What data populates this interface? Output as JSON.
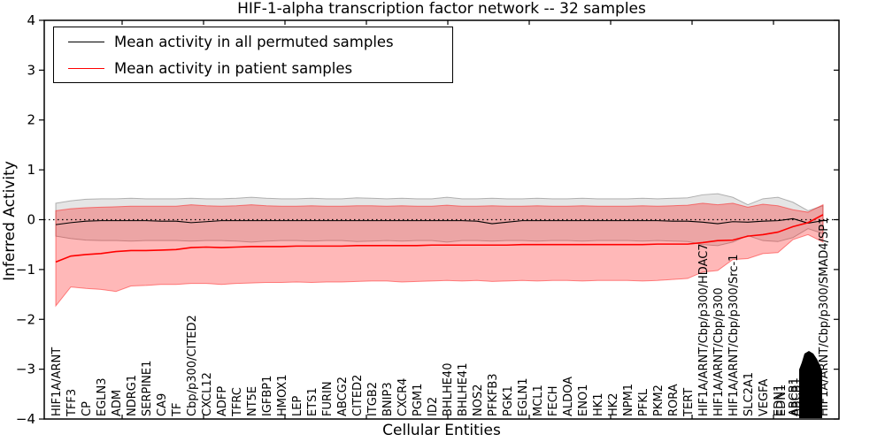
{
  "title": "HIF-1-alpha transcription factor network -- 32 samples",
  "xlabel": "Cellular Entities",
  "ylabel": "Inferred Activity",
  "legend": [
    {
      "label": "Mean activity in all permuted samples",
      "color": "#000000"
    },
    {
      "label": "Mean activity in patient samples",
      "color": "#ff0000"
    }
  ],
  "chart_data": {
    "type": "line",
    "title": "HIF-1-alpha transcription factor network -- 32 samples",
    "xlabel": "Cellular Entities",
    "ylabel": "Inferred Activity",
    "ylim": [
      -4,
      4
    ],
    "yticks": [
      4,
      3,
      2,
      1,
      0,
      -1,
      -2,
      -3,
      -4
    ],
    "grid": false,
    "legend_position": "upper left",
    "zero_line": {
      "y": 0,
      "style": "dotted",
      "color": "#000000"
    },
    "categories": [
      "HIF1A/ARNT",
      "TFF3",
      "CP",
      "EGLN3",
      "ADM",
      "NDRG1",
      "SERPINE1",
      "CA9",
      "TF",
      "Cbp/p300/CITED2",
      "CXCL12",
      "ADFP",
      "TFRC",
      "NT5E",
      "IGFBP1",
      "HMOX1",
      "LEP",
      "ETS1",
      "FURIN",
      "ABCG2",
      "CITED2",
      "ITGB2",
      "BNIP3",
      "CXCR4",
      "PGM1",
      "ID2",
      "BHLHE40",
      "BHLHE41",
      "NOS2",
      "PFKFB3",
      "PGK1",
      "EGLN1",
      "MCL1",
      "FECH",
      "ALDOA",
      "ENO1",
      "HK1",
      "HK2",
      "NPM1",
      "PFKL",
      "PKM2",
      "RORA",
      "TERT",
      "HIF1A/ARNT/Cbp/p300/HDAC7",
      "HIF1A/ARNT/Cbp/p300",
      "HIF1A/ARNT/Cbp/p300/Src-1",
      "SLC2A1",
      "VEGFA",
      "EDN1",
      "ABCB1",
      "",
      "HIF1A/ARNT/Cbp/p300/SMAD4/SP1"
    ],
    "overlapping_label_cluster": {
      "index": 50,
      "description": "many overlapping unreadable entity labels rendered as a solid black cluster"
    },
    "double_printed_indices": [
      48,
      49
    ],
    "series": [
      {
        "name": "Mean activity in all permuted samples",
        "color": "#000000",
        "values": [
          -0.1,
          -0.06,
          -0.03,
          -0.02,
          -0.02,
          -0.02,
          -0.02,
          -0.03,
          -0.03,
          -0.06,
          -0.04,
          -0.02,
          -0.02,
          -0.02,
          -0.02,
          -0.02,
          -0.02,
          -0.02,
          -0.02,
          -0.02,
          -0.02,
          -0.02,
          -0.02,
          -0.02,
          -0.02,
          -0.02,
          -0.02,
          -0.02,
          -0.03,
          -0.08,
          -0.05,
          -0.02,
          -0.02,
          -0.02,
          -0.02,
          -0.02,
          -0.02,
          -0.02,
          -0.02,
          -0.02,
          -0.02,
          -0.03,
          -0.03,
          -0.05,
          -0.08,
          -0.04,
          -0.05,
          -0.03,
          -0.02,
          0.02,
          -0.07,
          -0.02
        ]
      },
      {
        "name": "Mean activity in patient samples",
        "color": "#ff0000",
        "values": [
          -0.85,
          -0.73,
          -0.7,
          -0.68,
          -0.64,
          -0.62,
          -0.62,
          -0.61,
          -0.6,
          -0.56,
          -0.55,
          -0.56,
          -0.55,
          -0.54,
          -0.54,
          -0.54,
          -0.53,
          -0.53,
          -0.53,
          -0.53,
          -0.52,
          -0.52,
          -0.52,
          -0.52,
          -0.52,
          -0.51,
          -0.51,
          -0.51,
          -0.51,
          -0.51,
          -0.51,
          -0.5,
          -0.5,
          -0.5,
          -0.5,
          -0.5,
          -0.5,
          -0.5,
          -0.5,
          -0.5,
          -0.49,
          -0.49,
          -0.49,
          -0.46,
          -0.42,
          -0.41,
          -0.33,
          -0.3,
          -0.25,
          -0.14,
          -0.06,
          0.1
        ]
      }
    ],
    "bands": [
      {
        "series": "Mean activity in all permuted samples",
        "color": "#000000",
        "opacity": 0.1,
        "upper": [
          0.33,
          0.38,
          0.41,
          0.42,
          0.42,
          0.43,
          0.42,
          0.42,
          0.42,
          0.43,
          0.42,
          0.42,
          0.43,
          0.45,
          0.43,
          0.42,
          0.42,
          0.43,
          0.42,
          0.42,
          0.44,
          0.43,
          0.42,
          0.43,
          0.42,
          0.42,
          0.45,
          0.42,
          0.42,
          0.43,
          0.42,
          0.42,
          0.43,
          0.42,
          0.42,
          0.43,
          0.42,
          0.42,
          0.42,
          0.43,
          0.42,
          0.43,
          0.44,
          0.5,
          0.52,
          0.45,
          0.3,
          0.42,
          0.45,
          0.35,
          0.18,
          0.28
        ],
        "lower": [
          -0.33,
          -0.38,
          -0.41,
          -0.42,
          -0.42,
          -0.43,
          -0.42,
          -0.42,
          -0.42,
          -0.43,
          -0.42,
          -0.42,
          -0.43,
          -0.45,
          -0.43,
          -0.42,
          -0.42,
          -0.43,
          -0.42,
          -0.42,
          -0.44,
          -0.43,
          -0.42,
          -0.43,
          -0.42,
          -0.42,
          -0.45,
          -0.42,
          -0.42,
          -0.43,
          -0.42,
          -0.42,
          -0.43,
          -0.42,
          -0.42,
          -0.43,
          -0.42,
          -0.42,
          -0.42,
          -0.43,
          -0.42,
          -0.43,
          -0.44,
          -0.5,
          -0.52,
          -0.45,
          -0.32,
          -0.42,
          -0.44,
          -0.36,
          -0.18,
          -0.28
        ]
      },
      {
        "series": "Mean activity in patient samples",
        "color": "#ff0000",
        "opacity": 0.28,
        "upper": [
          0.18,
          0.22,
          0.24,
          0.25,
          0.26,
          0.27,
          0.27,
          0.27,
          0.27,
          0.3,
          0.28,
          0.27,
          0.28,
          0.3,
          0.28,
          0.27,
          0.27,
          0.28,
          0.27,
          0.27,
          0.28,
          0.28,
          0.27,
          0.28,
          0.27,
          0.27,
          0.29,
          0.27,
          0.27,
          0.28,
          0.27,
          0.27,
          0.28,
          0.27,
          0.27,
          0.28,
          0.27,
          0.27,
          0.27,
          0.28,
          0.27,
          0.28,
          0.29,
          0.33,
          0.3,
          0.33,
          0.25,
          0.31,
          0.28,
          0.2,
          0.15,
          0.3
        ],
        "lower": [
          -1.73,
          -1.35,
          -1.38,
          -1.4,
          -1.44,
          -1.33,
          -1.32,
          -1.3,
          -1.3,
          -1.28,
          -1.28,
          -1.3,
          -1.28,
          -1.27,
          -1.26,
          -1.26,
          -1.25,
          -1.26,
          -1.25,
          -1.25,
          -1.24,
          -1.23,
          -1.23,
          -1.25,
          -1.24,
          -1.23,
          -1.22,
          -1.23,
          -1.22,
          -1.24,
          -1.23,
          -1.22,
          -1.23,
          -1.22,
          -1.22,
          -1.23,
          -1.22,
          -1.22,
          -1.22,
          -1.23,
          -1.22,
          -1.2,
          -1.18,
          -1.05,
          -1.02,
          -0.8,
          -0.78,
          -0.68,
          -0.66,
          -0.4,
          -0.3,
          -0.45
        ]
      }
    ]
  }
}
